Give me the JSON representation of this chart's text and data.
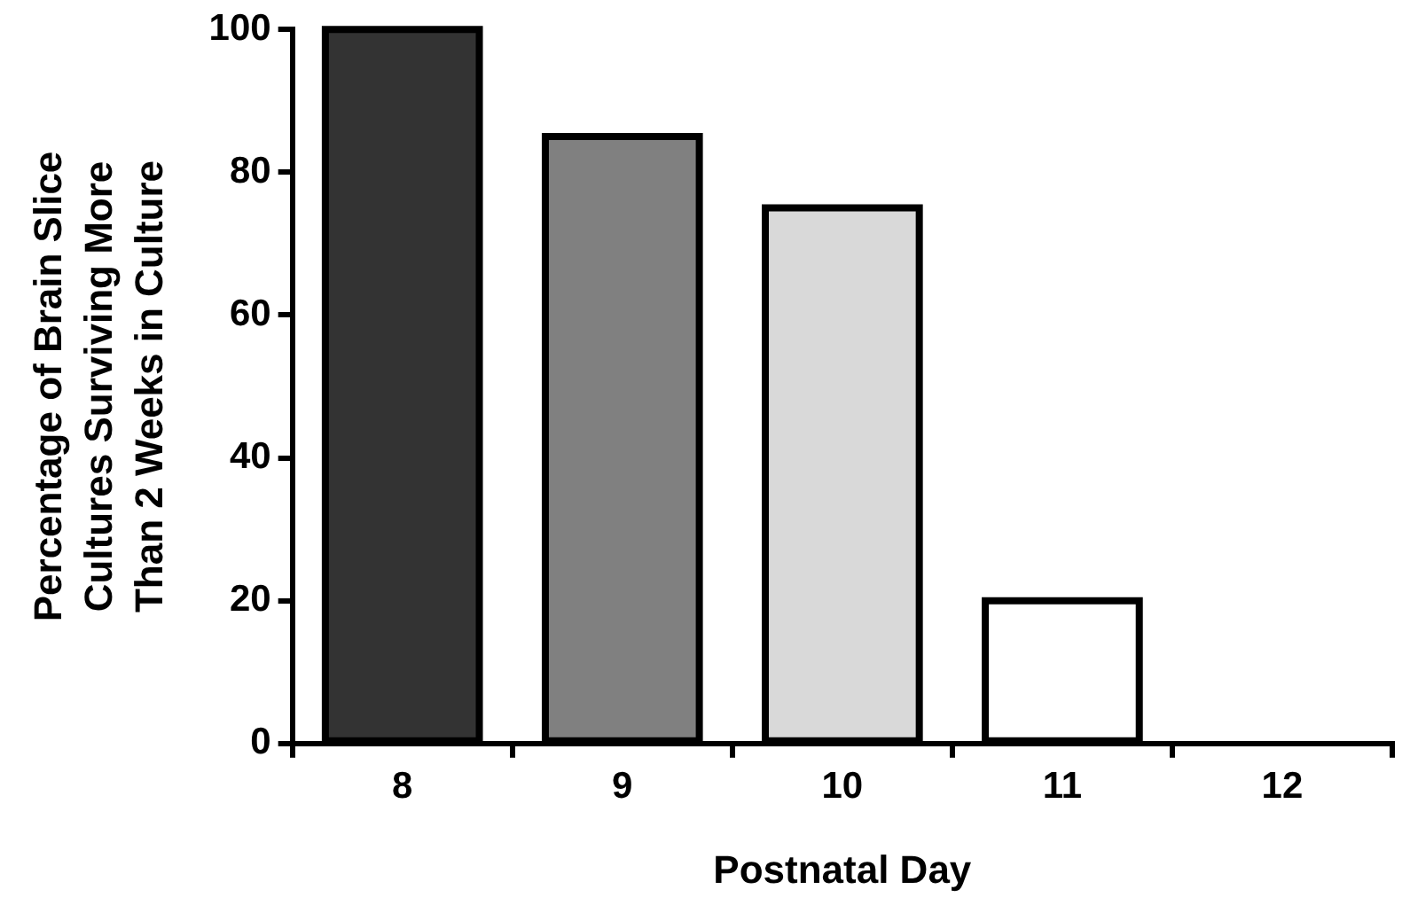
{
  "chart_data": {
    "type": "bar",
    "xlabel": "Postnatal Day",
    "ylabel": "Percentage of Brain Slice\nCultures Surviving More\nThan 2 Weeks in Culture",
    "categories": [
      "8",
      "9",
      "10",
      "11",
      "12"
    ],
    "values": [
      100,
      85,
      75,
      20,
      0
    ],
    "colors": [
      "#333333",
      "#808080",
      "#d9d9d9",
      "#ffffff",
      "#ffffff"
    ],
    "ylim": [
      0,
      100
    ],
    "yticks": [
      0,
      20,
      40,
      60,
      80,
      100
    ],
    "grid": false,
    "legend": false
  }
}
